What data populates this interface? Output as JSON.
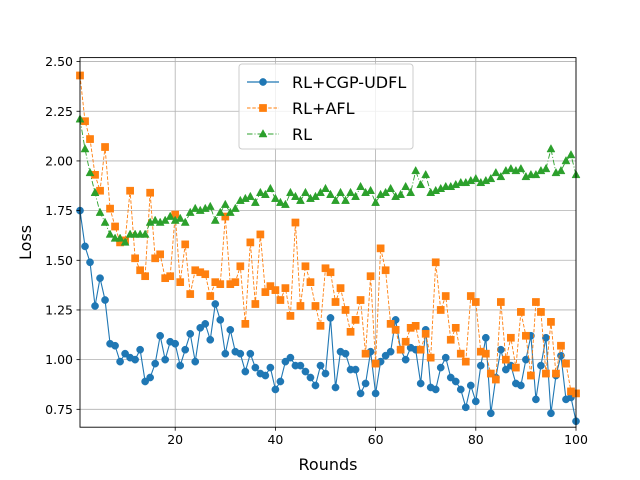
{
  "chart_data": {
    "type": "line",
    "xlabel": "Rounds",
    "ylabel": "Loss",
    "xlim": [
      1,
      100
    ],
    "ylim": [
      0.66,
      2.52
    ],
    "xticks": [
      20,
      40,
      60,
      80,
      100
    ],
    "yticks": [
      0.75,
      1.0,
      1.25,
      1.5,
      1.75,
      2.0,
      2.25,
      2.5
    ],
    "ytick_labels": [
      "0.75",
      "1.00",
      "1.25",
      "1.50",
      "1.75",
      "2.00",
      "2.25",
      "2.50"
    ],
    "grid": true,
    "legend_position": "top-center",
    "x": [
      1,
      2,
      3,
      4,
      5,
      6,
      7,
      8,
      9,
      10,
      11,
      12,
      13,
      14,
      15,
      16,
      17,
      18,
      19,
      20,
      21,
      22,
      23,
      24,
      25,
      26,
      27,
      28,
      29,
      30,
      31,
      32,
      33,
      34,
      35,
      36,
      37,
      38,
      39,
      40,
      41,
      42,
      43,
      44,
      45,
      46,
      47,
      48,
      49,
      50,
      51,
      52,
      53,
      54,
      55,
      56,
      57,
      58,
      59,
      60,
      61,
      62,
      63,
      64,
      65,
      66,
      67,
      68,
      69,
      70,
      71,
      72,
      73,
      74,
      75,
      76,
      77,
      78,
      79,
      80,
      81,
      82,
      83,
      84,
      85,
      86,
      87,
      88,
      89,
      90,
      91,
      92,
      93,
      94,
      95,
      96,
      97,
      98,
      99,
      100
    ],
    "series": [
      {
        "name": "RL+CGP-UDFL",
        "color": "#1f77b4",
        "marker": "circle",
        "linestyle": "solid",
        "values": [
          1.75,
          1.57,
          1.49,
          1.27,
          1.41,
          1.3,
          1.08,
          1.07,
          0.99,
          1.03,
          1.01,
          1.0,
          1.05,
          0.89,
          0.91,
          0.98,
          1.12,
          1.0,
          1.09,
          1.08,
          0.97,
          1.05,
          1.13,
          0.99,
          1.16,
          1.18,
          1.1,
          1.28,
          1.2,
          1.03,
          1.15,
          1.04,
          1.03,
          0.94,
          1.03,
          0.96,
          0.93,
          0.92,
          0.96,
          0.85,
          0.89,
          0.99,
          1.01,
          0.97,
          0.97,
          0.94,
          0.91,
          0.87,
          0.97,
          0.93,
          1.21,
          0.86,
          1.04,
          1.03,
          0.95,
          0.95,
          0.83,
          0.88,
          1.04,
          0.83,
          0.99,
          1.02,
          1.04,
          1.2,
          1.05,
          1.0,
          1.06,
          1.05,
          0.88,
          1.15,
          0.86,
          0.85,
          0.96,
          1.01,
          0.91,
          0.89,
          0.85,
          0.76,
          0.87,
          0.79,
          0.97,
          1.11,
          0.73,
          0.91,
          1.05,
          0.95,
          0.97,
          0.88,
          0.87,
          1.0,
          1.12,
          0.8,
          0.97,
          1.11,
          0.73,
          0.92,
          1.02,
          0.8,
          0.81,
          0.69
        ]
      },
      {
        "name": "RL+AFL",
        "color": "#ff7f0e",
        "marker": "square",
        "linestyle": "dashed",
        "values": [
          2.43,
          2.2,
          2.11,
          1.93,
          1.85,
          2.07,
          1.76,
          1.67,
          1.59,
          1.6,
          1.85,
          1.51,
          1.45,
          1.42,
          1.84,
          1.51,
          1.53,
          1.41,
          1.42,
          1.73,
          1.39,
          1.58,
          1.33,
          1.45,
          1.44,
          1.43,
          1.32,
          1.39,
          1.38,
          1.72,
          1.38,
          1.39,
          1.47,
          1.18,
          1.59,
          1.28,
          1.63,
          1.34,
          1.37,
          1.35,
          1.3,
          1.36,
          1.22,
          1.69,
          1.27,
          1.47,
          1.39,
          1.27,
          1.17,
          1.46,
          1.44,
          1.29,
          1.36,
          1.25,
          1.14,
          1.2,
          1.3,
          1.03,
          1.42,
          0.98,
          1.56,
          1.45,
          1.18,
          1.15,
          1.05,
          1.09,
          1.16,
          1.17,
          1.05,
          1.13,
          1.01,
          1.49,
          1.25,
          1.32,
          1.1,
          1.16,
          1.03,
          0.99,
          1.32,
          1.29,
          1.04,
          1.03,
          0.93,
          0.9,
          1.29,
          1.0,
          1.11,
          0.96,
          1.24,
          1.12,
          0.92,
          1.29,
          1.24,
          0.93,
          1.19,
          0.93,
          1.07,
          0.98,
          0.84,
          0.83
        ]
      },
      {
        "name": "RL",
        "color": "#2ca02c",
        "marker": "triangle",
        "linestyle": "dashdot",
        "values": [
          2.21,
          2.06,
          1.94,
          1.84,
          1.74,
          1.69,
          1.63,
          1.61,
          1.61,
          1.59,
          1.63,
          1.63,
          1.63,
          1.63,
          1.69,
          1.7,
          1.69,
          1.7,
          1.72,
          1.7,
          1.71,
          1.69,
          1.74,
          1.76,
          1.75,
          1.76,
          1.77,
          1.7,
          1.74,
          1.78,
          1.74,
          1.76,
          1.8,
          1.81,
          1.82,
          1.79,
          1.84,
          1.83,
          1.86,
          1.81,
          1.79,
          1.78,
          1.84,
          1.82,
          1.8,
          1.84,
          1.81,
          1.82,
          1.84,
          1.86,
          1.83,
          1.8,
          1.84,
          1.8,
          1.84,
          1.82,
          1.87,
          1.84,
          1.85,
          1.79,
          1.83,
          1.84,
          1.86,
          1.82,
          1.83,
          1.87,
          1.84,
          1.95,
          1.88,
          1.93,
          1.84,
          1.85,
          1.86,
          1.87,
          1.87,
          1.88,
          1.89,
          1.89,
          1.9,
          1.91,
          1.89,
          1.9,
          1.91,
          1.94,
          1.92,
          1.95,
          1.96,
          1.95,
          1.96,
          1.92,
          1.93,
          1.93,
          1.95,
          1.96,
          2.06,
          1.94,
          1.95,
          2.0,
          2.03,
          1.93
        ]
      }
    ]
  }
}
